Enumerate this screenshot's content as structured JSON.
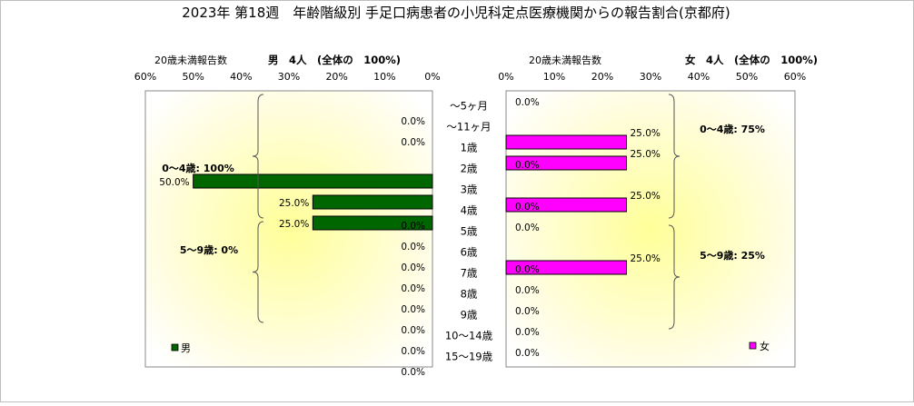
{
  "chart_data": {
    "type": "bar",
    "orientation": "horizontal-population-pyramid",
    "title": "2023年 第18週　年齢階級別 手足口病患者の小児科定点医療機関からの報告割合(京都府)",
    "categories": [
      "～5ヶ月",
      "～11ヶ月",
      "1歳",
      "2歳",
      "3歳",
      "4歳",
      "5歳",
      "6歳",
      "7歳",
      "8歳",
      "9歳",
      "10～14歳",
      "15～19歳"
    ],
    "left_panel": {
      "axis_label": "20歳未満報告数",
      "heading": "男　4人　(全体の　100%)",
      "ticks": [
        "60%",
        "50%",
        "40%",
        "30%",
        "20%",
        "10%",
        "0%"
      ],
      "xlim": [
        0,
        60
      ],
      "series": [
        {
          "name": "男",
          "color": "#006600",
          "values": [
            0,
            0,
            50,
            25,
            25,
            0,
            0,
            0,
            0,
            0,
            0,
            0,
            0
          ],
          "labels": [
            "0.0%",
            "0.0%",
            "50.0%",
            "25.0%",
            "25.0%",
            "0.0%",
            "0.0%",
            "0.0%",
            "0.0%",
            "0.0%",
            "0.0%",
            "0.0%",
            "0.0%"
          ]
        }
      ],
      "group_annotations": [
        "0～4歳: 100%",
        "5～9歳: 0%"
      ],
      "legend": "男",
      "legend_position": "bottom-left"
    },
    "right_panel": {
      "axis_label": "20歳未満報告数",
      "heading": "女　4人　(全体の　100%)",
      "ticks": [
        "0%",
        "10%",
        "20%",
        "30%",
        "40%",
        "50%",
        "60%"
      ],
      "xlim": [
        0,
        60
      ],
      "series": [
        {
          "name": "女",
          "color": "#ff00ff",
          "values": [
            0,
            25,
            25,
            0,
            25,
            0,
            0,
            25,
            0,
            0,
            0,
            0,
            0
          ],
          "labels": [
            "0.0%",
            "25.0%",
            "25.0%",
            "0.0%",
            "25.0%",
            "0.0%",
            "0.0%",
            "25.0%",
            "0.0%",
            "0.0%",
            "0.0%",
            "0.0%",
            "0.0%"
          ]
        }
      ],
      "group_annotations": [
        "0～4歳: 75%",
        "5～9歳: 25%"
      ],
      "legend": "女",
      "legend_position": "bottom-right"
    },
    "background": "yellow-radial-gradient"
  }
}
